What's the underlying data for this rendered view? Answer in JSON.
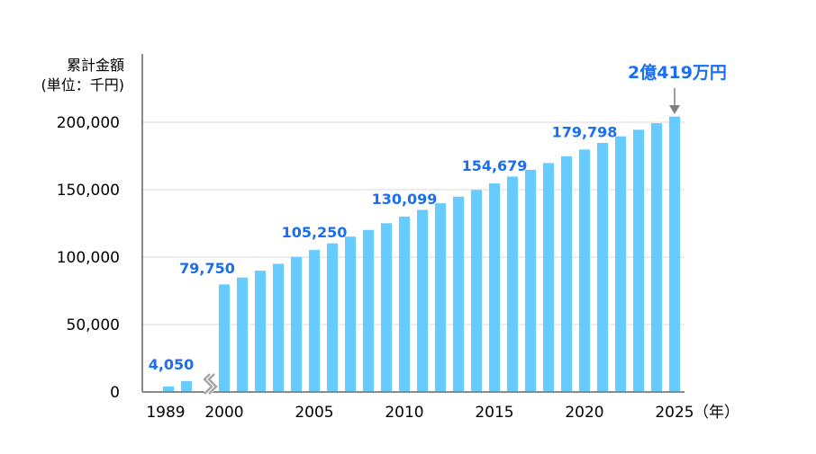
{
  "chart_data": {
    "type": "bar",
    "title": "",
    "ylabel_line1": "累計金額",
    "ylabel_line2": "(単位：千円)",
    "xlabel": "（年）",
    "ylim": [
      0,
      200000
    ],
    "y_ticks": [
      0,
      50000,
      100000,
      150000,
      200000
    ],
    "y_tick_labels": [
      "0",
      "50,000",
      "100,000",
      "150,000",
      "200,000"
    ],
    "grid": true,
    "axis_break_between": [
      "1990",
      "2000"
    ],
    "x_tick_labels": [
      "1989",
      "2000",
      "2005",
      "2010",
      "2015",
      "2020",
      "2025"
    ],
    "categories": [
      "1989",
      "1990",
      "2000",
      "2001",
      "2002",
      "2003",
      "2004",
      "2005",
      "2006",
      "2007",
      "2008",
      "2009",
      "2010",
      "2011",
      "2012",
      "2013",
      "2014",
      "2015",
      "2016",
      "2017",
      "2018",
      "2019",
      "2020",
      "2021",
      "2022",
      "2023",
      "2024",
      "2025"
    ],
    "values": [
      4050,
      8100,
      79750,
      84850,
      89950,
      95050,
      100150,
      105250,
      110220,
      115190,
      120160,
      125130,
      130099,
      135015,
      139931,
      144847,
      149763,
      154679,
      159703,
      164727,
      169751,
      174775,
      179798,
      184676,
      189554,
      194432,
      199310,
      204190
    ],
    "data_labels": [
      {
        "category": "1989",
        "text": "4,050"
      },
      {
        "category": "2000",
        "text": "79,750"
      },
      {
        "category": "2005",
        "text": "105,250"
      },
      {
        "category": "2010",
        "text": "130,099"
      },
      {
        "category": "2015",
        "text": "154,679"
      },
      {
        "category": "2020",
        "text": "179,798"
      }
    ],
    "final_annotation": {
      "category": "2025",
      "text": "2億419万円"
    },
    "colors": {
      "bar": "#66CCFF",
      "label": "#1A6EF0",
      "axis": "#898989",
      "grid": "#D9D9D9"
    }
  }
}
